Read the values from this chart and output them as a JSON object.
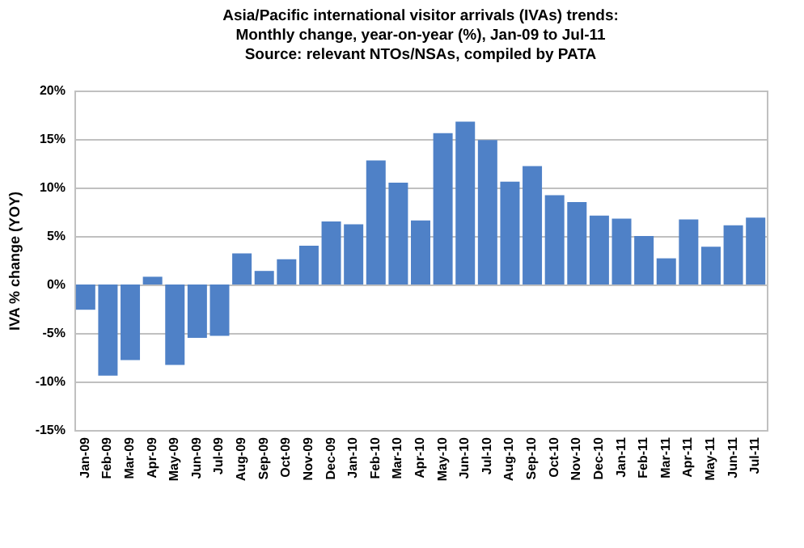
{
  "chart_data": {
    "type": "bar",
    "title": [
      "Asia/Pacific international visitor arrivals (IVAs) trends:",
      "Monthly change, year-on-year (%), Jan-09 to Jul-11",
      "Source: relevant NTOs/NSAs, compiled by PATA"
    ],
    "ylabel": "IVA % change (YOY)",
    "categories": [
      "Jan-09",
      "Feb-09",
      "Mar-09",
      "Apr-09",
      "May-09",
      "Jun-09",
      "Jul-09",
      "Aug-09",
      "Sep-09",
      "Oct-09",
      "Nov-09",
      "Dec-09",
      "Jan-10",
      "Feb-10",
      "Mar-10",
      "Apr-10",
      "May-10",
      "Jun-10",
      "Jul-10",
      "Aug-10",
      "Sep-10",
      "Oct-10",
      "Nov-10",
      "Dec-10",
      "Jan-11",
      "Feb-11",
      "Mar-11",
      "Apr-11",
      "May-11",
      "Jun-11",
      "Jul-11"
    ],
    "values": [
      -2.6,
      -9.4,
      -7.8,
      0.8,
      -8.3,
      -5.5,
      -5.3,
      3.2,
      1.4,
      2.6,
      4.0,
      6.5,
      6.2,
      12.8,
      10.5,
      6.6,
      15.6,
      16.8,
      14.9,
      10.6,
      12.2,
      9.2,
      8.5,
      7.1,
      6.8,
      5.0,
      2.7,
      6.7,
      3.9,
      6.1,
      6.9
    ],
    "color": "#4f81c7",
    "ylim": [
      -15,
      20
    ],
    "yticks": [
      {
        "value": -15,
        "label": "-15%"
      },
      {
        "value": -10,
        "label": "-10%"
      },
      {
        "value": -5,
        "label": "-5%"
      },
      {
        "value": 0,
        "label": "0%"
      },
      {
        "value": 5,
        "label": "5%"
      },
      {
        "value": 10,
        "label": "10%"
      },
      {
        "value": 15,
        "label": "15%"
      },
      {
        "value": 20,
        "label": "20%"
      }
    ],
    "grid": "y"
  }
}
